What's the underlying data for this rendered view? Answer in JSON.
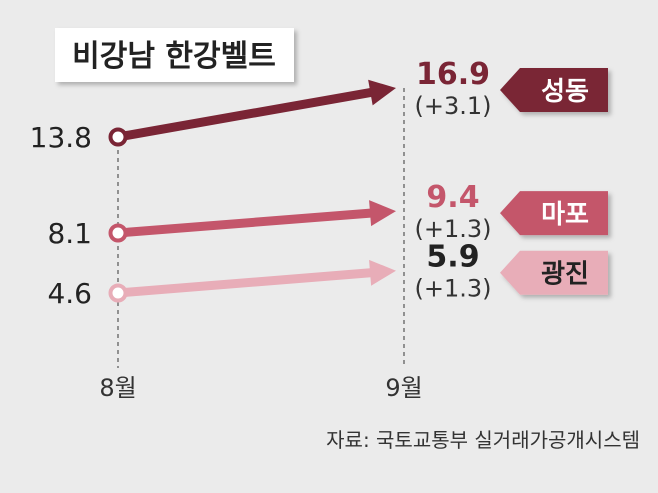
{
  "chart_data": {
    "type": "line",
    "title": "비강남 한강벨트",
    "categories": [
      "8월",
      "9월"
    ],
    "series": [
      {
        "name": "성동",
        "values": [
          13.8,
          16.9
        ],
        "delta": "(+3.1)",
        "color": "#7a2535",
        "value_color": "#7a2535",
        "tag_text_color": "#ffffff"
      },
      {
        "name": "마포",
        "values": [
          8.1,
          9.4
        ],
        "delta": "(+1.3)",
        "color": "#c4566b",
        "value_color": "#c4566b",
        "tag_text_color": "#ffffff"
      },
      {
        "name": "광진",
        "values": [
          4.6,
          5.9
        ],
        "delta": "(+1.3)",
        "color": "#e8adb8",
        "value_color": "#222222",
        "tag_text_color": "#222222"
      }
    ],
    "start_labels": [
      "13.8",
      "8.1",
      "4.6"
    ],
    "end_labels": [
      "16.9",
      "9.4",
      "5.9"
    ],
    "grid": false,
    "legend": "none"
  },
  "source": "자료: 국토교통부 실거래가공개시스템"
}
